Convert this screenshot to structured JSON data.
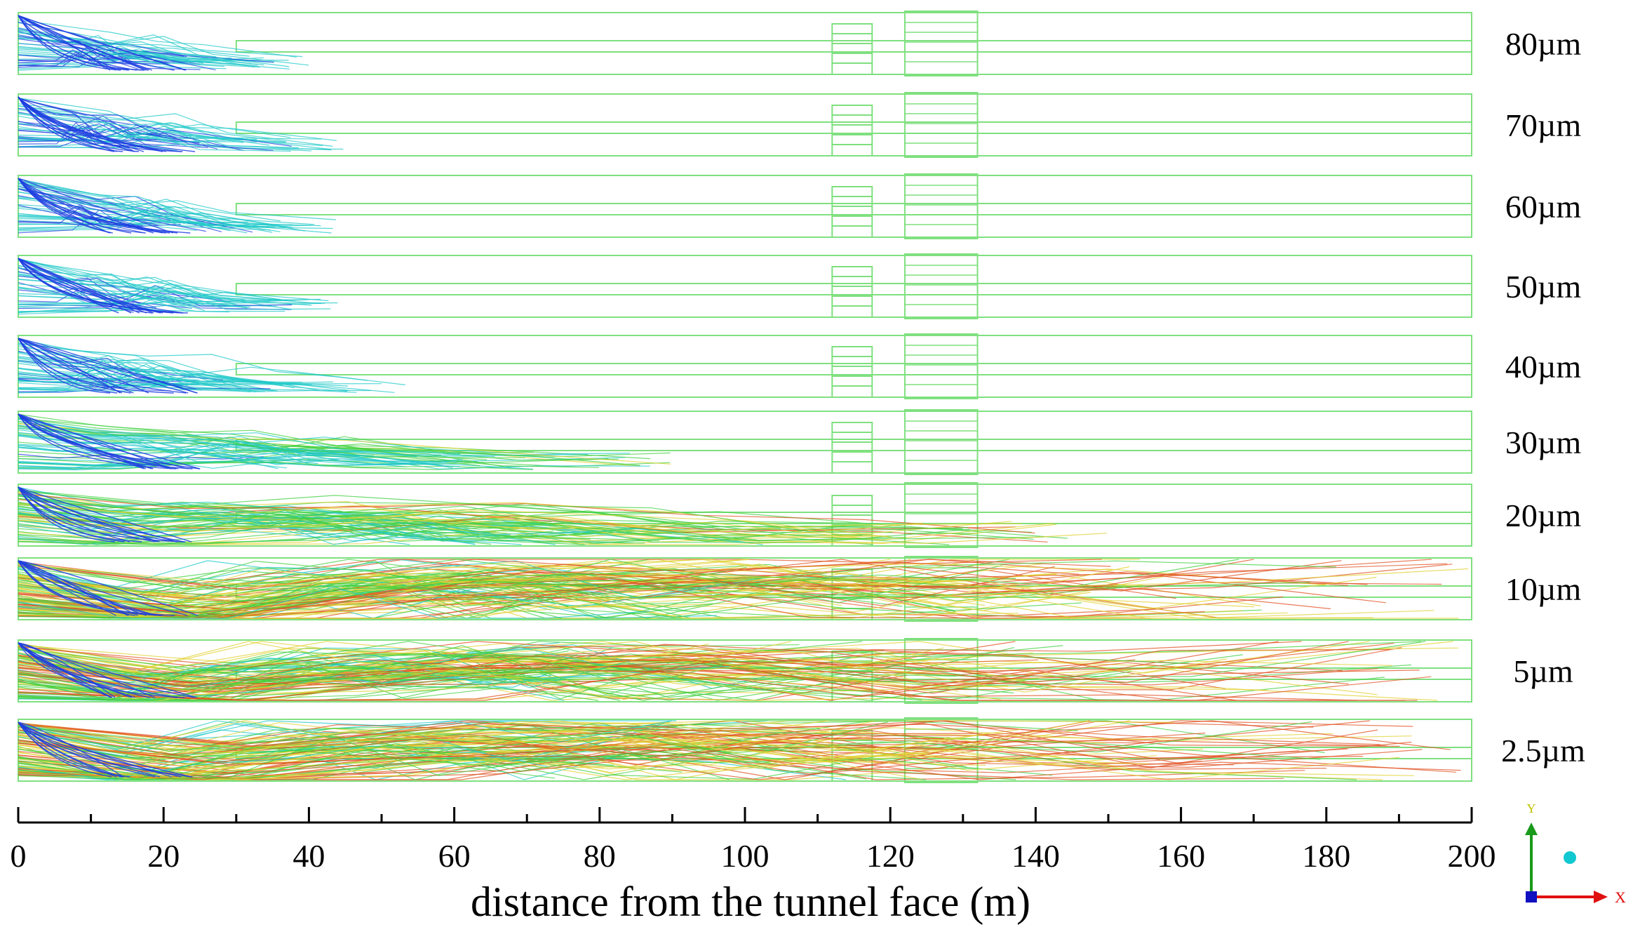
{
  "panels": [
    {
      "label": "80µm",
      "reach_m": 41,
      "spread": 0.0
    },
    {
      "label": "70µm",
      "reach_m": 45,
      "spread": 0.0
    },
    {
      "label": "60µm",
      "reach_m": 46,
      "spread": 0.0
    },
    {
      "label": "50µm",
      "reach_m": 45,
      "spread": 0.0
    },
    {
      "label": "40µm",
      "reach_m": 54,
      "spread": 0.05
    },
    {
      "label": "30µm",
      "reach_m": 91,
      "spread": 0.15
    },
    {
      "label": "20µm",
      "reach_m": 150,
      "spread": 0.45
    },
    {
      "label": "10µm",
      "reach_m": 200,
      "spread": 1.0
    },
    {
      "label": "5µm",
      "reach_m": 200,
      "spread": 1.0
    },
    {
      "label": "2.5µm",
      "reach_m": 200,
      "spread": 1.0
    }
  ],
  "axis": {
    "ticks": [
      "0",
      "20",
      "40",
      "60",
      "80",
      "100",
      "120",
      "140",
      "160",
      "180",
      "200"
    ],
    "range_m": [
      0,
      200
    ],
    "xlabel": "distance from the tunnel face (m)"
  },
  "triad": {
    "y_label": "Y",
    "x_label": "X"
  },
  "colors": {
    "outline": "#7fe07f",
    "particle_blue": "#1f3fe0",
    "particle_cyan": "#20c8c8",
    "particle_green": "#40d040",
    "particle_yellow": "#e0d030",
    "particle_red": "#e05020",
    "axis": "#000000",
    "triad_y": "#1a9a1a",
    "triad_x": "#e01010",
    "triad_z": "#1010c0",
    "triad_dot": "#10c8d0"
  }
}
